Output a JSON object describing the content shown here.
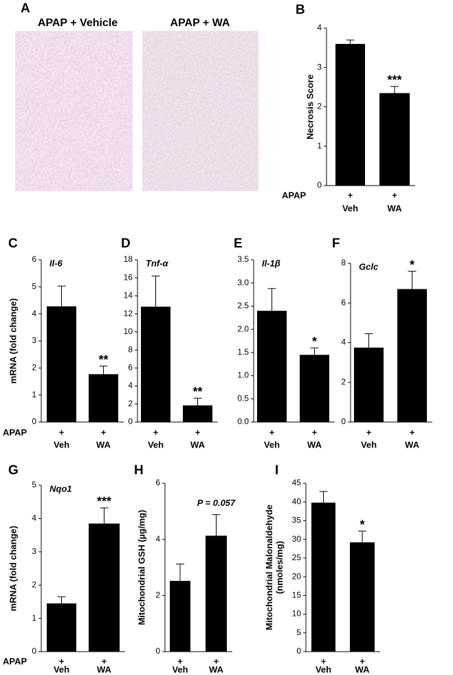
{
  "images": {
    "label": "A",
    "titles": [
      "APAP + Vehicle",
      "APAP + WA"
    ]
  },
  "chart_data": [
    {
      "type": "bar",
      "label": "B",
      "ylabel": [
        "Necrosis Score"
      ],
      "group_label": "APAP",
      "treatment": [
        "+",
        "+"
      ],
      "categories": [
        "Veh",
        "WA"
      ],
      "values": [
        3.6,
        2.35
      ],
      "errors": [
        0.1,
        0.17
      ],
      "significance": "***",
      "ylim": [
        0,
        4
      ],
      "yticks": [
        0,
        1,
        2,
        3,
        4
      ],
      "color": "#000000"
    },
    {
      "type": "bar",
      "label": "C",
      "title": "Il-6",
      "ylabel": [
        "mRNA (fold change)"
      ],
      "group_label": "APAP",
      "treatment": [
        "+",
        "+"
      ],
      "categories": [
        "Veh",
        "WA"
      ],
      "values": [
        4.28,
        1.77
      ],
      "errors": [
        0.75,
        0.3
      ],
      "significance": "**",
      "ylim": [
        0,
        6
      ],
      "yticks": [
        0,
        1,
        2,
        3,
        4,
        5,
        6
      ],
      "color": "#000000"
    },
    {
      "type": "bar",
      "label": "D",
      "title": "Tnf-α",
      "treatment": [
        "+",
        "+"
      ],
      "categories": [
        "Veh",
        "WA"
      ],
      "values": [
        12.8,
        1.85
      ],
      "errors": [
        3.4,
        0.8
      ],
      "significance": "**",
      "ylim": [
        0,
        18
      ],
      "yticks": [
        0,
        2,
        4,
        6,
        8,
        10,
        12,
        14,
        16,
        18
      ],
      "color": "#000000"
    },
    {
      "type": "bar",
      "label": "E",
      "title": "Il-1β",
      "treatment": [
        "+",
        "+"
      ],
      "categories": [
        "Veh",
        "WA"
      ],
      "values": [
        2.4,
        1.45
      ],
      "errors": [
        0.48,
        0.15
      ],
      "significance": "*",
      "ylim": [
        0,
        3.5
      ],
      "yticks": [
        {
          "value": 0,
          "label": "0.0"
        },
        0.5,
        {
          "value": 1,
          "label": "1.0"
        },
        1.5,
        {
          "value": 2,
          "label": "2.0"
        },
        2.5,
        {
          "value": 3,
          "label": "3.0"
        },
        3.5
      ],
      "color": "#000000"
    },
    {
      "type": "bar",
      "label": "F",
      "title": "Gclc",
      "treatment": [
        "+",
        "+"
      ],
      "categories": [
        "Veh",
        "WA"
      ],
      "values": [
        3.75,
        6.7
      ],
      "errors": [
        0.7,
        0.9
      ],
      "significance": "*",
      "ylim": [
        0,
        8
      ],
      "yticks": [
        0,
        2,
        4,
        6,
        8
      ],
      "color": "#000000"
    },
    {
      "type": "bar",
      "label": "G",
      "title": "Nqo1",
      "ylabel": [
        "mRNA (fold change)"
      ],
      "group_label": "APAP",
      "treatment": [
        "+",
        "+"
      ],
      "categories": [
        "Veh",
        "WA"
      ],
      "values": [
        1.45,
        3.85
      ],
      "errors": [
        0.2,
        0.47
      ],
      "significance": "***",
      "ylim": [
        0,
        5
      ],
      "yticks": [
        0,
        1,
        2,
        3,
        4,
        5
      ],
      "color": "#000000"
    },
    {
      "type": "bar",
      "label": "H",
      "ylabel": [
        "Mitochondrial GSH (µg/mg)"
      ],
      "treatment": [
        "+",
        "+"
      ],
      "categories": [
        "Veh",
        "WA"
      ],
      "values": [
        2.52,
        4.13
      ],
      "errors": [
        0.6,
        0.75
      ],
      "significance": "P = 0.057",
      "ylim": [
        0,
        6
      ],
      "yticks": [
        0,
        2,
        4,
        6
      ],
      "color": "#000000"
    },
    {
      "type": "bar",
      "label": "I",
      "ylabel": [
        "Mitochondrial Malonaldehyde",
        "(nmoles/mg)"
      ],
      "treatment": [
        "+",
        "+"
      ],
      "categories": [
        "Veh",
        "WA"
      ],
      "values": [
        39.8,
        29.2
      ],
      "errors": [
        3,
        3
      ],
      "significance": "*",
      "ylim": [
        0,
        45
      ],
      "yticks": [
        0,
        5,
        10,
        15,
        20,
        25,
        30,
        35,
        40,
        45
      ],
      "color": "#000000"
    }
  ]
}
